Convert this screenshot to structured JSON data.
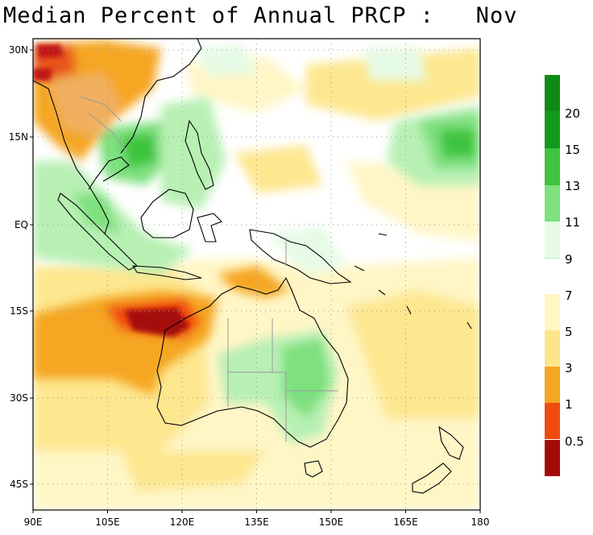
{
  "title": "Median Percent of Annual PRCP :   Nov",
  "map": {
    "lat_labels": [
      "30N",
      "15N",
      "EQ",
      "15S",
      "30S",
      "45S"
    ],
    "lon_labels": [
      "90E",
      "105E",
      "120E",
      "135E",
      "150E",
      "165E",
      "180"
    ],
    "lon_range": [
      90,
      180
    ],
    "lat_range": [
      -49,
      32
    ],
    "grid": "dotted"
  },
  "colorbar": {
    "wet_levels": [
      {
        "label": "20",
        "color": "#129a1c"
      },
      {
        "label": "15",
        "color": "#3ec43e"
      },
      {
        "label": "13",
        "color": "#7ee07e"
      },
      {
        "label": "11",
        "color": "#b8f0b4"
      },
      {
        "label": "9",
        "color": "#e6fbe6"
      }
    ],
    "wet_top_color": "#0e8a16",
    "dry_levels": [
      {
        "label": "7",
        "color": "#fff6c4"
      },
      {
        "label": "5",
        "color": "#fde68a"
      },
      {
        "label": "3",
        "color": "#f5a623"
      },
      {
        "label": "1",
        "color": "#f04a10"
      },
      {
        "label": "0.5",
        "color": "#a50a0a"
      }
    ]
  }
}
